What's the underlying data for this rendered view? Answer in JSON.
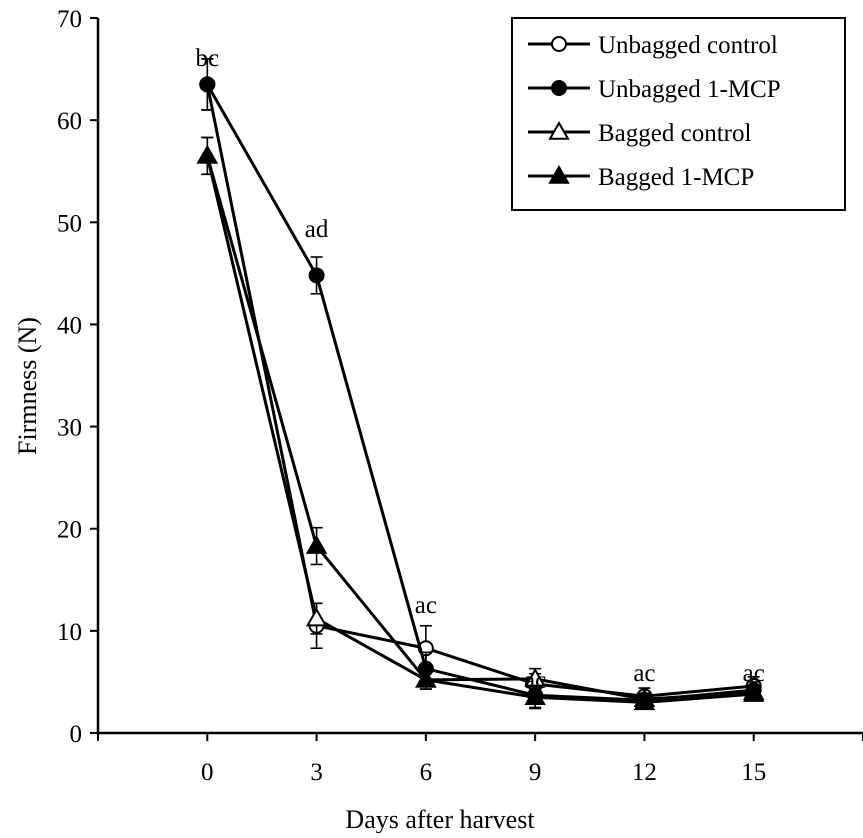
{
  "chart_data": {
    "type": "line",
    "title": "",
    "xlabel": "Days after harvest",
    "ylabel": "Firmness (N)",
    "xlim": [
      -3,
      18
    ],
    "ylim": [
      0,
      70
    ],
    "x": [
      0,
      3,
      6,
      9,
      12,
      15
    ],
    "x_ticks": [
      "0",
      "3",
      "6",
      "9",
      "12",
      "15"
    ],
    "y_ticks": [
      "0",
      "10",
      "20",
      "30",
      "40",
      "50",
      "60",
      "70"
    ],
    "grid": false,
    "legend_position": "top-right",
    "series": [
      {
        "name": "Unbagged control",
        "marker": "circle-open",
        "values": [
          63.5,
          10.5,
          8.3,
          4.8,
          3.6,
          4.6
        ],
        "errors": [
          2.5,
          2.2,
          2.2,
          1.0,
          0.8,
          0.9
        ]
      },
      {
        "name": "Unbagged 1-MCP",
        "marker": "circle-filled",
        "values": [
          63.5,
          44.8,
          6.3,
          3.7,
          3.2,
          4.2
        ],
        "errors": [
          2.5,
          1.8,
          1.6,
          1.3,
          0.6,
          0.8
        ]
      },
      {
        "name": "Bagged control",
        "marker": "triangle-open",
        "values": [
          56.5,
          11.2,
          5.2,
          5.3,
          3.3,
          4.0
        ],
        "errors": [
          1.8,
          1.5,
          0.9,
          1.0,
          0.6,
          0.6
        ]
      },
      {
        "name": "Bagged 1-MCP",
        "marker": "triangle-filled",
        "values": [
          56.5,
          18.3,
          5.2,
          3.5,
          3.0,
          3.8
        ],
        "errors": [
          1.8,
          1.8,
          0.9,
          1.0,
          0.6,
          0.6
        ]
      }
    ],
    "annotations": [
      {
        "x": 0,
        "text": "bc"
      },
      {
        "x": 3,
        "text": "ad"
      },
      {
        "x": 6,
        "text": "ac"
      },
      {
        "x": 9,
        "text": "ac"
      },
      {
        "x": 12,
        "text": "ac"
      },
      {
        "x": 15,
        "text": "ac"
      }
    ]
  }
}
